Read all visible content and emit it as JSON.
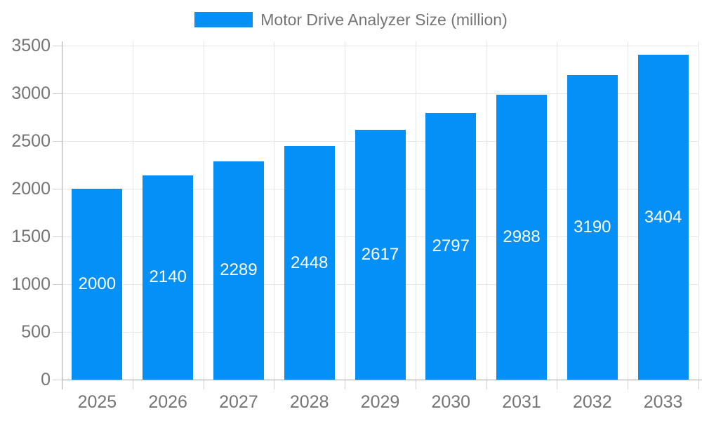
{
  "legend": {
    "label": "Motor Drive Analyzer Size (million)"
  },
  "chart_data": {
    "type": "bar",
    "title": "Motor Drive Analyzer Size (million)",
    "categories": [
      "2025",
      "2026",
      "2027",
      "2028",
      "2029",
      "2030",
      "2031",
      "2032",
      "2033"
    ],
    "values": [
      2000,
      2140,
      2289,
      2448,
      2617,
      2797,
      2988,
      3190,
      3404
    ],
    "xlabel": "",
    "ylabel": "",
    "ylim": [
      0,
      3500
    ],
    "yticks": [
      0,
      500,
      1000,
      1500,
      2000,
      2500,
      3000,
      3500
    ],
    "grid": true,
    "legend_position": "top-center",
    "value_labels": "inside-middle",
    "colors": {
      "bar": "#0590f8",
      "value_label": "#ffffff",
      "axis_text": "#757575",
      "legend_text": "#757575",
      "gridline": "#e6e6e6",
      "tick": "#d0d0d0",
      "axis_line": "#a6a6a6"
    }
  }
}
